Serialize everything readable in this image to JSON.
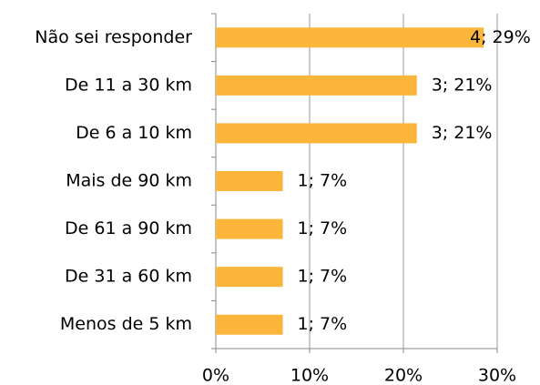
{
  "chart_data": {
    "type": "bar",
    "orientation": "horizontal",
    "categories": [
      "Não sei responder",
      "De 11 a 30 km",
      "De 6 a 10 km",
      "Mais de 90 km",
      "De 61 a 90 km",
      "De 31 a 60 km",
      "Menos de 5 km"
    ],
    "values": [
      28.57,
      21.43,
      21.43,
      7.14,
      7.14,
      7.14,
      7.14
    ],
    "value_labels": [
      "4; 29%",
      "3; 21%",
      "3; 21%",
      "1; 7%",
      "1; 7%",
      "1; 7%",
      "1; 7%"
    ],
    "color": "#fbb53a",
    "xlim": [
      0,
      30
    ],
    "xticks": [
      {
        "value": 0,
        "label": "0%"
      },
      {
        "value": 10,
        "label": "10%"
      },
      {
        "value": 20,
        "label": "20%"
      },
      {
        "value": 30,
        "label": "30%"
      }
    ],
    "grid": true
  }
}
